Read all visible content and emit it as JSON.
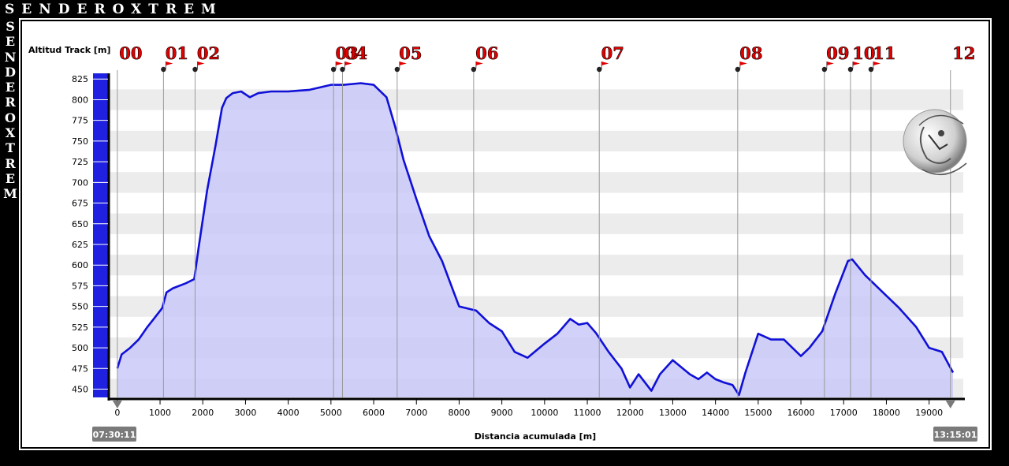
{
  "brand": {
    "name": "SENDEROXTREM"
  },
  "colors": {
    "line": "#1010d8",
    "fill": "#c9c9f8",
    "flag": "#e00000",
    "waypoint_label": "#e00000"
  },
  "chart_data": {
    "type": "area",
    "title": "",
    "xlabel": "Distancia acumulada [m]",
    "ylabel": "Altitud Track [m]",
    "xlim": [
      -200,
      19800
    ],
    "ylim": [
      440,
      830
    ],
    "x_ticks": [
      0,
      1000,
      2000,
      3000,
      4000,
      5000,
      6000,
      7000,
      8000,
      9000,
      10000,
      11000,
      12000,
      13000,
      14000,
      15000,
      16000,
      17000,
      18000,
      19000
    ],
    "y_ticks": [
      450,
      475,
      500,
      525,
      550,
      575,
      600,
      625,
      650,
      675,
      700,
      725,
      750,
      775,
      800,
      825
    ],
    "grid": "horizontal bands",
    "start_time": "07:30:11",
    "end_time": "13:15:01",
    "waypoints": [
      {
        "label": "00",
        "x": 0
      },
      {
        "label": "01",
        "x": 1080
      },
      {
        "label": "02",
        "x": 1820
      },
      {
        "label": "03",
        "x": 5060
      },
      {
        "label": "04",
        "x": 5270
      },
      {
        "label": "05",
        "x": 6550
      },
      {
        "label": "06",
        "x": 8340
      },
      {
        "label": "07",
        "x": 11280
      },
      {
        "label": "08",
        "x": 14520
      },
      {
        "label": "09",
        "x": 16550
      },
      {
        "label": "10",
        "x": 17160
      },
      {
        "label": "11",
        "x": 17640
      },
      {
        "label": "12",
        "x": 19500
      }
    ],
    "series": [
      {
        "x": [
          0,
          100,
          300,
          500,
          700,
          900,
          1050,
          1150,
          1300,
          1600,
          1800,
          1900,
          2100,
          2300,
          2450,
          2550,
          2700,
          2900,
          3100,
          3300,
          3600,
          4000,
          4500,
          5000,
          5300,
          5700,
          6000,
          6300,
          6500,
          6700,
          7000,
          7300,
          7600,
          8000,
          8400,
          8700,
          9000,
          9300,
          9600,
          10000,
          10300,
          10600,
          10800,
          11000,
          11200,
          11500,
          11800,
          12000,
          12200,
          12500,
          12700,
          13000,
          13400,
          13600,
          13800,
          14000,
          14200,
          14400,
          14550,
          14700,
          15000,
          15300,
          15600,
          16000,
          16200,
          16500,
          16800,
          17100,
          17200,
          17500,
          17900,
          18300,
          18700,
          19000,
          19300,
          19560
        ],
        "values": [
          475,
          492,
          500,
          510,
          525,
          538,
          548,
          567,
          572,
          578,
          583,
          620,
          690,
          745,
          790,
          802,
          808,
          810,
          803,
          808,
          810,
          810,
          812,
          818,
          818,
          820,
          818,
          803,
          768,
          727,
          680,
          635,
          605,
          550,
          545,
          530,
          520,
          495,
          488,
          505,
          517,
          535,
          528,
          530,
          518,
          495,
          475,
          452,
          468,
          448,
          468,
          485,
          468,
          462,
          470,
          462,
          458,
          455,
          443,
          470,
          517,
          510,
          510,
          490,
          500,
          520,
          565,
          605,
          607,
          588,
          568,
          548,
          525,
          500,
          495,
          470
        ]
      }
    ]
  }
}
